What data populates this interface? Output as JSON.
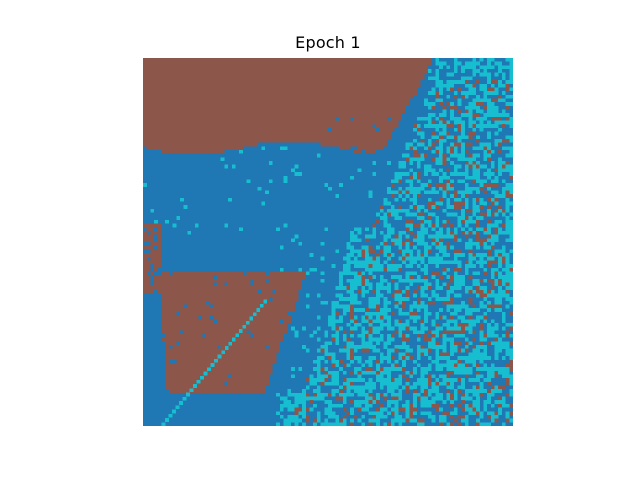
{
  "chart_data": {
    "type": "heatmap",
    "title": "Epoch 1",
    "xlabel": "",
    "ylabel": "",
    "axes_visible": false,
    "grid": false,
    "legend": "none",
    "grid_size": [
      100,
      100
    ],
    "classes": [
      {
        "id": 0,
        "color": "#1f77b4"
      },
      {
        "id": 1,
        "color": "#8c564b"
      },
      {
        "id": 2,
        "color": "#17becf"
      }
    ]
  }
}
